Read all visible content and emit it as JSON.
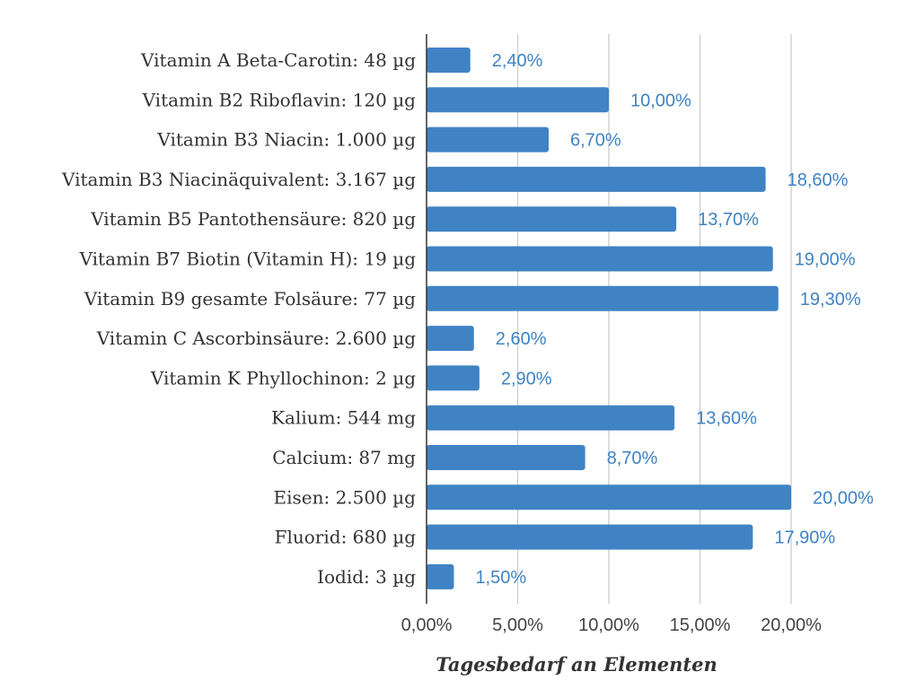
{
  "chart_data": {
    "type": "bar",
    "orientation": "horizontal",
    "title": "",
    "xlabel": "Tagesbedarf an Elementen",
    "ylabel": "",
    "categories": [
      "Vitamin A Beta-Carotin: 48 µg",
      "Vitamin B2 Riboflavin: 120 µg",
      "Vitamin B3 Niacin: 1.000 µg",
      "Vitamin B3 Niacinäquivalent: 3.167 µg",
      "Vitamin B5 Pantothensäure: 820 µg",
      "Vitamin B7 Biotin (Vitamin H): 19 µg",
      "Vitamin B9 gesamte Folsäure: 77 µg",
      "Vitamin C Ascorbinsäure: 2.600 µg",
      "Vitamin K Phyllochinon: 2 µg",
      "Kalium: 544 mg",
      "Calcium: 87 mg",
      "Eisen: 2.500 µg",
      "Fluorid: 680 µg",
      "Iodid: 3 µg"
    ],
    "values": [
      2.4,
      10.0,
      6.7,
      18.6,
      13.7,
      19.0,
      19.3,
      2.6,
      2.9,
      13.6,
      8.7,
      20.0,
      17.9,
      1.5
    ],
    "data_labels": [
      "2,40%",
      "10,00%",
      "6,70%",
      "18,60%",
      "13,70%",
      "19,00%",
      "19,30%",
      "2,60%",
      "2,90%",
      "13,60%",
      "8,70%",
      "20,00%",
      "17,90%",
      "1,50%"
    ],
    "xlim": [
      0,
      20
    ],
    "x_ticks": [
      0,
      5,
      10,
      15,
      20
    ],
    "x_tick_labels": [
      "0,00%",
      "5,00%",
      "10,00%",
      "15,00%",
      "20,00%"
    ],
    "grid": true,
    "legend": "none",
    "bar_color": "#3f83c4",
    "label_color": "#3f83c4"
  }
}
